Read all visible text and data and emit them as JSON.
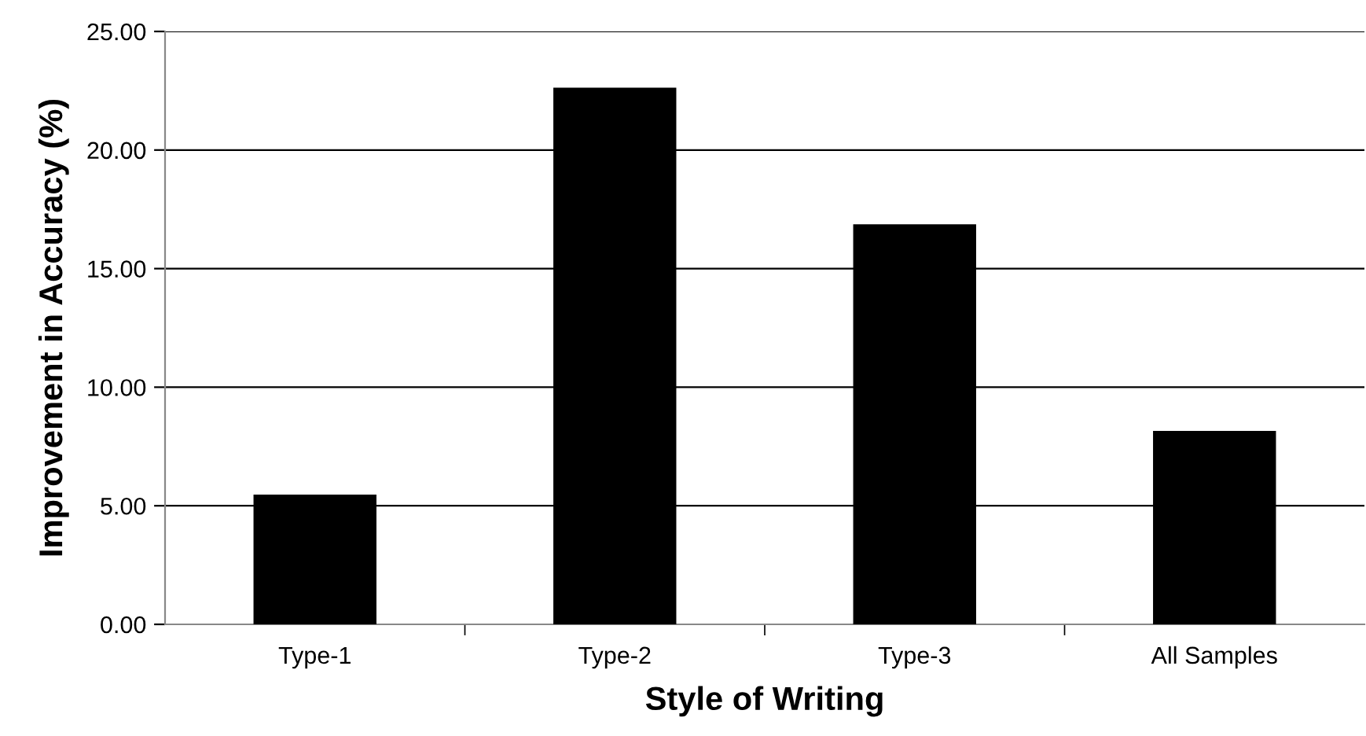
{
  "chart_data": {
    "type": "bar",
    "xlabel": "Style of Writing",
    "ylabel": "Improvement in Accuracy (%)",
    "categories": [
      "Type-1",
      "Type-2",
      "Type-3",
      "All Samples"
    ],
    "values": [
      5.47,
      22.63,
      16.87,
      8.16
    ],
    "color": "#000000",
    "ylim": [
      0,
      25
    ],
    "yticks": [
      {
        "value": 0,
        "label": "0.00"
      },
      {
        "value": 5,
        "label": "5.00"
      },
      {
        "value": 10,
        "label": "10.00"
      },
      {
        "value": 15,
        "label": "15.00"
      },
      {
        "value": 20,
        "label": "20.00"
      },
      {
        "value": 25,
        "label": "25.00"
      }
    ],
    "grid": "y"
  }
}
